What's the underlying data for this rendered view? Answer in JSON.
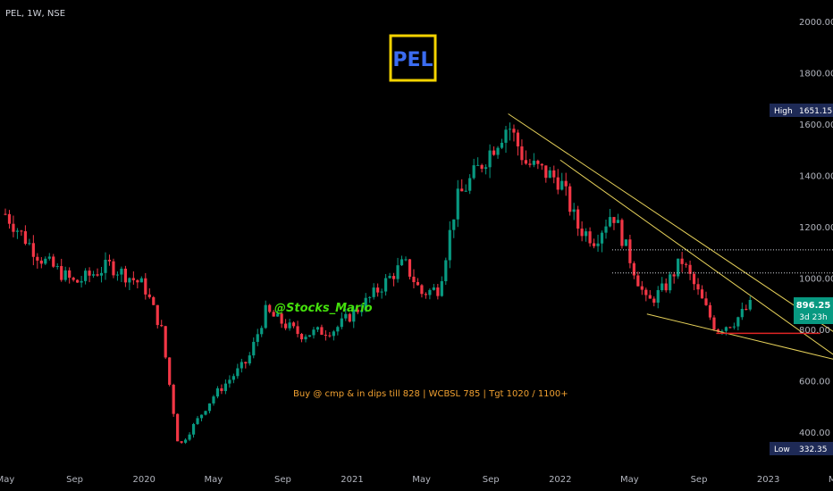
{
  "header": {
    "symbol": "PEL, 1W, NSE"
  },
  "colors": {
    "background": "#000000",
    "up": "#089981",
    "down": "#f23645",
    "trendline": "#e6d15a",
    "support": "#e02424",
    "logo_border": "#f5d300",
    "logo_text": "#3b6cf0",
    "watermark_text": "#44e10c",
    "note_text": "#f0a030",
    "price_tag": "#089981",
    "hilo_tag": "#1e2a56"
  },
  "logo": {
    "text": "PEL"
  },
  "watermark": {
    "text": "@Stocks_Mario"
  },
  "note": {
    "text": "Buy @ cmp & in dips till 828 | WCBSL 785 | Tgt 1020 / 1100+"
  },
  "price_axis": {
    "ticks": [
      "2000.00",
      "1800.00",
      "1600.00",
      "1400.00",
      "1200.00",
      "1000.00",
      "800.00",
      "600.00",
      "400.00"
    ],
    "high_label": "High",
    "high_value": "1651.15",
    "low_label": "Low",
    "low_value": "332.35",
    "last_price": "896.25",
    "countdown": "3d 23h"
  },
  "time_axis": {
    "ticks": [
      "May",
      "Sep",
      "2020",
      "May",
      "Sep",
      "2021",
      "May",
      "Sep",
      "2022",
      "May",
      "Sep",
      "2023",
      "May"
    ]
  },
  "chart_data": {
    "type": "candlestick",
    "symbol": "PEL",
    "interval": "1W",
    "exchange": "NSE",
    "y_ticks": [
      400,
      600,
      800,
      1000,
      1200,
      1400,
      1600,
      1800,
      2000
    ],
    "x_ticks": [
      "May",
      "Sep",
      "2020",
      "May",
      "Sep",
      "2021",
      "May",
      "Sep",
      "2022",
      "May",
      "Sep",
      "2023",
      "May"
    ],
    "high": 1651.15,
    "low": 332.35,
    "last": 896.25,
    "price_path": [
      {
        "date": "2019-05",
        "price": 1250
      },
      {
        "date": "2019-07",
        "price": 1080
      },
      {
        "date": "2019-09",
        "price": 980
      },
      {
        "date": "2019-11",
        "price": 1050
      },
      {
        "date": "2020-01",
        "price": 970
      },
      {
        "date": "2020-02",
        "price": 800
      },
      {
        "date": "2020-03",
        "price": 340
      },
      {
        "date": "2020-05",
        "price": 540
      },
      {
        "date": "2020-07",
        "price": 680
      },
      {
        "date": "2020-08",
        "price": 870
      },
      {
        "date": "2020-10",
        "price": 780
      },
      {
        "date": "2020-12",
        "price": 800
      },
      {
        "date": "2021-02",
        "price": 920
      },
      {
        "date": "2021-04",
        "price": 1060
      },
      {
        "date": "2021-05",
        "price": 940
      },
      {
        "date": "2021-06",
        "price": 960
      },
      {
        "date": "2021-07",
        "price": 1300
      },
      {
        "date": "2021-08",
        "price": 1400
      },
      {
        "date": "2021-10",
        "price": 1600
      },
      {
        "date": "2021-11",
        "price": 1450
      },
      {
        "date": "2022-01",
        "price": 1380
      },
      {
        "date": "2022-02",
        "price": 1200
      },
      {
        "date": "2022-03",
        "price": 1150
      },
      {
        "date": "2022-04",
        "price": 1260
      },
      {
        "date": "2022-06",
        "price": 900
      },
      {
        "date": "2022-07",
        "price": 960
      },
      {
        "date": "2022-08",
        "price": 1070
      },
      {
        "date": "2022-10",
        "price": 800
      },
      {
        "date": "2022-11",
        "price": 830
      },
      {
        "date": "2022-12",
        "price": 896
      }
    ],
    "annotations": {
      "resistance_lines": [
        1110,
        1020
      ],
      "support_line": 785,
      "upper_trendline": [
        {
          "date": "2021-10",
          "price": 1640
        },
        {
          "date": "2023-05",
          "price": 780
        }
      ],
      "lower_trendline": [
        {
          "date": "2022-06",
          "price": 860
        },
        {
          "date": "2023-05",
          "price": 680
        }
      ],
      "inner_trendline": [
        {
          "date": "2022-01",
          "price": 1460
        },
        {
          "date": "2023-05",
          "price": 690
        }
      ]
    }
  }
}
